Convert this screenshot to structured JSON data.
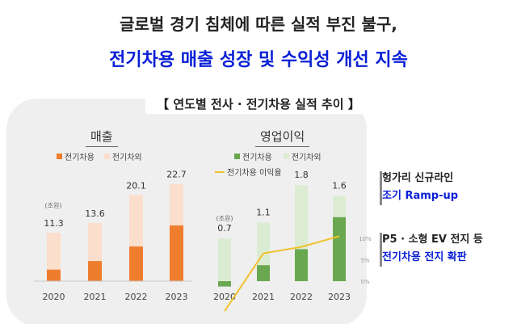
{
  "header": {
    "line1": "글로벌 경기 침체에 따른 실적 부진 불구,",
    "line2": "전기차용 매출 성장 및 수익성 개선 지속"
  },
  "section_label": "【 연도별 전사 · 전기차용 실적 추이 】",
  "colors": {
    "ev_sales": "#ef7d2e",
    "non_ev_sales": "#fbdecb",
    "ev_op": "#6aa84f",
    "non_ev_op": "#dcecd2",
    "margin_line": "#f2c12e",
    "headline_blue": "#0a1fd6"
  },
  "chart_data": [
    {
      "type": "bar",
      "title": "매출",
      "unit_label": "(조원)",
      "categories": [
        "2020",
        "2021",
        "2022",
        "2023"
      ],
      "series": [
        {
          "name": "전기차용",
          "values": [
            2.7,
            4.7,
            8.1,
            13.0
          ]
        },
        {
          "name": "전기차외",
          "values": [
            8.6,
            8.9,
            12.0,
            9.7
          ]
        }
      ],
      "totals": [
        11.3,
        13.6,
        20.1,
        22.7
      ],
      "total_labels": [
        "11.3",
        "13.6",
        "20.1",
        "22.7"
      ],
      "ylim": [
        0,
        24
      ],
      "legend": [
        "전기차용",
        "전기차외"
      ]
    },
    {
      "type": "bar",
      "title": "영업이익",
      "unit_label": "(조원)",
      "categories": [
        "2020",
        "2021",
        "2022",
        "2023"
      ],
      "series": [
        {
          "name": "전기차용",
          "values": [
            -0.1,
            0.3,
            0.6,
            1.2
          ]
        },
        {
          "name": "전기차외",
          "values": [
            0.8,
            0.8,
            1.2,
            0.4
          ]
        },
        {
          "name": "전기차용 이익율",
          "type": "line",
          "axis": "right",
          "values": [
            -7,
            6.5,
            8,
            10.5
          ]
        }
      ],
      "totals": [
        0.7,
        1.1,
        1.8,
        1.6
      ],
      "total_labels": [
        "0.7",
        "1.1",
        "1.8",
        "1.6"
      ],
      "ylim": [
        -0.1,
        2.0
      ],
      "right_axis": {
        "ticks": [
          "10%",
          "5%",
          "0%"
        ],
        "values": [
          10,
          5,
          0
        ]
      },
      "legend": [
        "전기차용",
        "전기차외",
        "전기차용 이익율"
      ]
    }
  ],
  "notes": [
    {
      "line1": "헝가리 신규라인",
      "line2": "조기 Ramp-up"
    },
    {
      "line1": "P5 · 소형 EV 전지 등",
      "line2": "전기차용 전지 확판"
    }
  ]
}
